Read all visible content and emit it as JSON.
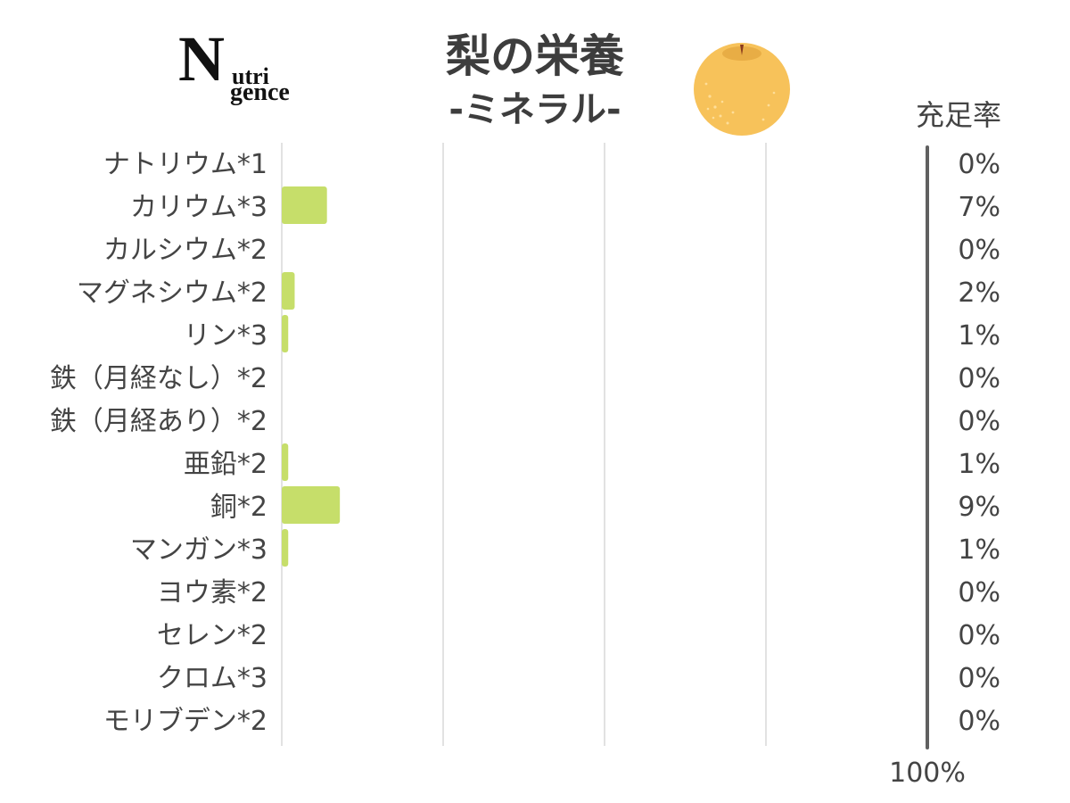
{
  "logo": {
    "line1": "N",
    "line1_rest": "utri",
    "line2": "gence"
  },
  "header": {
    "title": "梨の栄養",
    "subtitle": "-ミネラル-",
    "rate_label": "充足率"
  },
  "fruit_icon": "pear-icon",
  "colors": {
    "bar": "#c6de6a",
    "grid": "#d8d8d8",
    "reference_line": "#606060",
    "text": "#444444"
  },
  "chart_data": {
    "type": "bar",
    "orientation": "horizontal",
    "title": "梨の栄養",
    "subtitle": "-ミネラル-",
    "categories": [
      "ナトリウム*1",
      "カリウム*3",
      "カルシウム*2",
      "マグネシウム*2",
      "リン*3",
      "鉄（月経なし）*2",
      "鉄（月経あり）*2",
      "亜鉛*2",
      "銅*2",
      "マンガン*3",
      "ヨウ素*2",
      "セレン*2",
      "クロム*3",
      "モリブデン*2"
    ],
    "values": [
      0,
      7,
      0,
      2,
      1,
      0,
      0,
      1,
      9,
      1,
      0,
      0,
      0,
      0
    ],
    "value_labels": [
      "0%",
      "7%",
      "0%",
      "2%",
      "1%",
      "0%",
      "0%",
      "1%",
      "9%",
      "1%",
      "0%",
      "0%",
      "0%",
      "0%"
    ],
    "value_unit": "%",
    "xlim": [
      0,
      100
    ],
    "reference_line": {
      "value": 100,
      "label": "100%"
    },
    "grid": true
  }
}
